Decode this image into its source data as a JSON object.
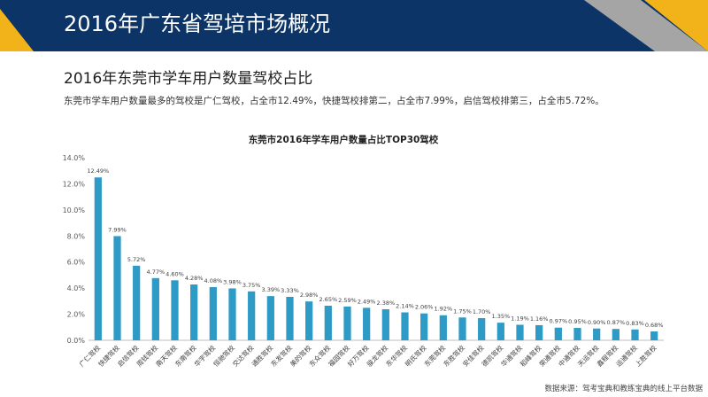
{
  "header": {
    "title": "2016年广东省驾培市场概况"
  },
  "section": {
    "title": "2016年东莞市学车用户数量驾校占比",
    "description": "东莞市学车用户数量最多的驾校是广仁驾校，占全市12.49%，快捷驾校排第二，占全市7.99%，启信驾校排第三，占全市5.72%。"
  },
  "source": "数据来源：驾考宝典和教练宝典的线上平台数据",
  "colors": {
    "bar": "#2e9bc6",
    "header": "#0d3466",
    "accent_yellow": "#f2b21a",
    "accent_gray": "#a5a5a5"
  },
  "chart_data": {
    "type": "bar",
    "title": "东莞市2016年学车用户数量占比TOP30驾校",
    "categories": [
      "广仁驾校",
      "快捷驾校",
      "启信驾校",
      "周钱驾校",
      "南天驾校",
      "东南驾校",
      "华宇驾校",
      "恒驰驾校",
      "交达驾校",
      "通胜驾校",
      "东发驾校",
      "美的驾校",
      "东众驾校",
      "福园驾校",
      "好万驾校",
      "骏龙驾校",
      "东华驾校",
      "明氏驾校",
      "东莞驾校",
      "东胜驾校",
      "安佳驾校",
      "德凯驾校",
      "华通驾校",
      "稻峰驾校",
      "荣通驾校",
      "中通驾校",
      "天运驾校",
      "鑫程驾校",
      "运通驾校",
      "上胜驾校"
    ],
    "values": [
      12.49,
      7.99,
      5.72,
      4.77,
      4.6,
      4.28,
      4.08,
      3.98,
      3.75,
      3.39,
      3.33,
      2.98,
      2.65,
      2.59,
      2.49,
      2.38,
      2.14,
      2.06,
      1.92,
      1.75,
      1.7,
      1.35,
      1.19,
      1.16,
      0.97,
      0.95,
      0.9,
      0.87,
      0.83,
      0.68
    ],
    "data_labels": [
      "12.49%",
      "7.99%",
      "5.72%",
      "4.77%",
      "4.60%",
      "4.28%",
      "4.08%",
      "3.98%",
      "3.75%",
      "3.39%",
      "3.33%",
      "2.98%",
      "2.65%",
      "2.59%",
      "2.49%",
      "2.38%",
      "2.14%",
      "2.06%",
      "1.92%",
      "1.75%",
      "1.70%",
      "1.35%",
      "1.19%",
      "1.16%",
      "0.97%",
      "0.95%",
      "0.90%",
      "0.87%",
      "0.83%",
      "0.68%"
    ],
    "y_ticks": [
      "0.0%",
      "2.0%",
      "4.0%",
      "6.0%",
      "8.0%",
      "10.0%",
      "12.0%",
      "14.0%"
    ],
    "ylim": [
      0,
      14
    ],
    "grid": false,
    "legend": "none"
  }
}
